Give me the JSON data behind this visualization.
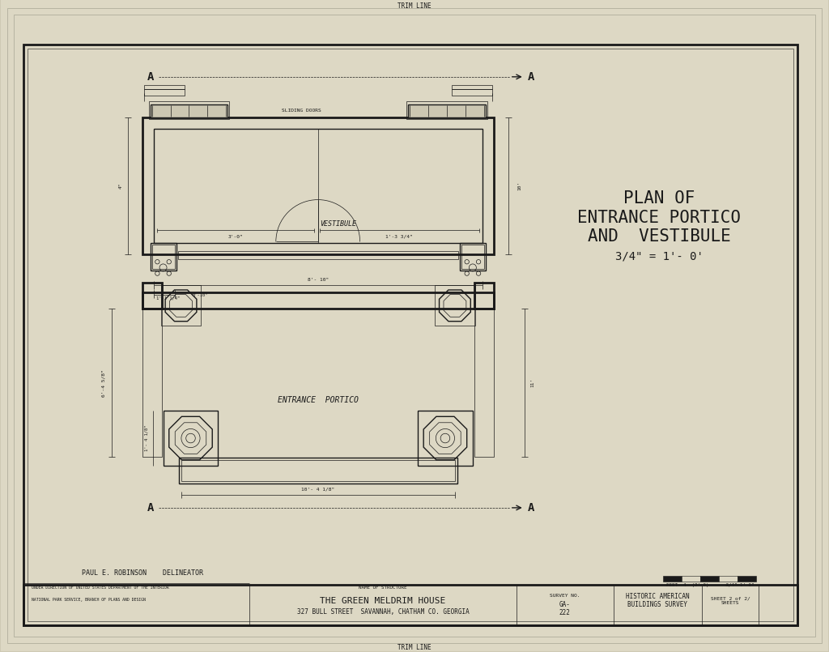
{
  "bg_color": "#cec9b4",
  "paper_color": "#ddd8c4",
  "line_color": "#1a1a1a",
  "title_lines": [
    "PLAN OF",
    "ENTRANCE PORTICO",
    "AND  VESTIBULE",
    "3/4\" = 1'- 0'"
  ],
  "footer_name": "THE GREEN MELDRIM HOUSE",
  "footer_addr": "327 BULL STREET  SAVANNAH, CHATHAM CO. GEORGIA",
  "footer_sheet": "SHEET 2 of 2/ SHEETS",
  "delineator": "PAUL E. ROBINSON    DELINEATOR",
  "trim_line": "TRIM LINE"
}
